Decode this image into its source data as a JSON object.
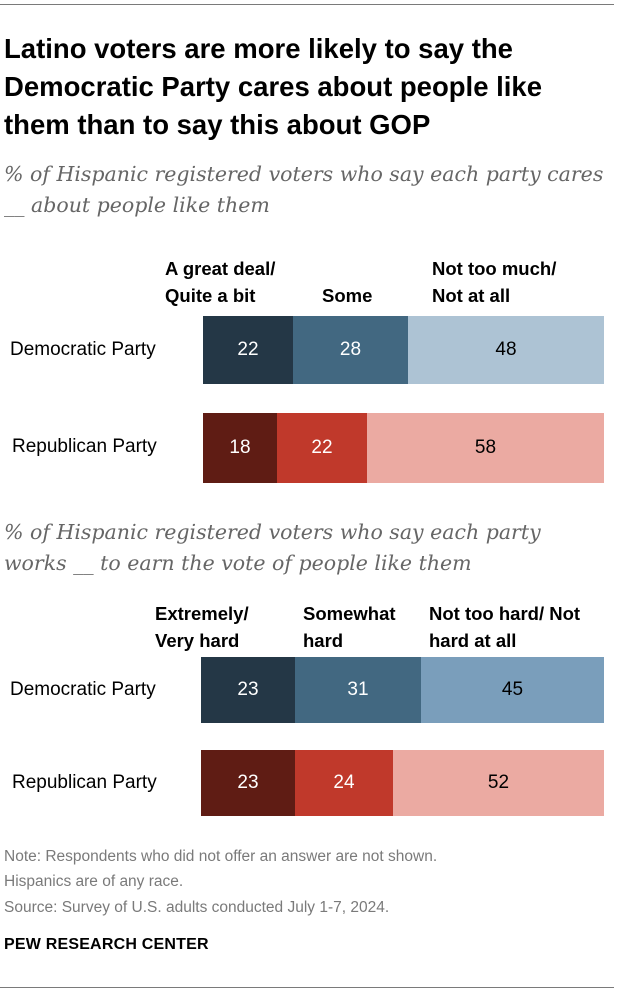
{
  "title": "Latino voters are more likely to say the Democratic Party cares about people like them than to say this about GOP",
  "chart_data": [
    {
      "type": "bar",
      "orientation": "horizontal",
      "stacked": true,
      "subtitle": "% of Hispanic registered voters who say each party cares __ about people like them",
      "categories": [
        "Democratic Party",
        "Republican Party"
      ],
      "series": [
        {
          "name": "A great deal/ Quite a bit",
          "values": [
            22,
            18
          ]
        },
        {
          "name": "Some",
          "values": [
            28,
            22
          ]
        },
        {
          "name": "Not too much/ Not at all",
          "values": [
            48,
            58
          ]
        }
      ],
      "xlim": [
        0,
        100
      ],
      "colors": {
        "Democratic Party": [
          "#243746",
          "#426881",
          "#adc3d4"
        ],
        "Republican Party": [
          "#5f1c14",
          "#c0392b",
          "#ebaaa2"
        ]
      },
      "label_colors": {
        "Democratic Party": [
          "#ffffff",
          "#ffffff",
          "#000000"
        ],
        "Republican Party": [
          "#ffffff",
          "#ffffff",
          "#000000"
        ]
      }
    },
    {
      "type": "bar",
      "orientation": "horizontal",
      "stacked": true,
      "subtitle": "% of Hispanic registered voters who say each party works __ to earn the vote of people like them",
      "categories": [
        "Democratic Party",
        "Republican Party"
      ],
      "series": [
        {
          "name": "Extremely/ Very hard",
          "values": [
            23,
            23
          ]
        },
        {
          "name": "Somewhat hard",
          "values": [
            31,
            24
          ]
        },
        {
          "name": "Not too hard/ Not hard at all",
          "values": [
            45,
            52
          ]
        }
      ],
      "xlim": [
        0,
        100
      ],
      "colors": {
        "Democratic Party": [
          "#243746",
          "#426881",
          "#7a9ebb"
        ],
        "Republican Party": [
          "#5f1c14",
          "#c0392b",
          "#ebaaa2"
        ]
      },
      "label_colors": {
        "Democratic Party": [
          "#ffffff",
          "#ffffff",
          "#000000"
        ],
        "Republican Party": [
          "#ffffff",
          "#ffffff",
          "#000000"
        ]
      }
    }
  ],
  "notes": [
    "Note: Respondents who did not offer an answer are not shown.",
    "Hispanics are of any race.",
    "Source: Survey of U.S. adults conducted July 1-7, 2024."
  ],
  "brand": "PEW RESEARCH CENTER"
}
